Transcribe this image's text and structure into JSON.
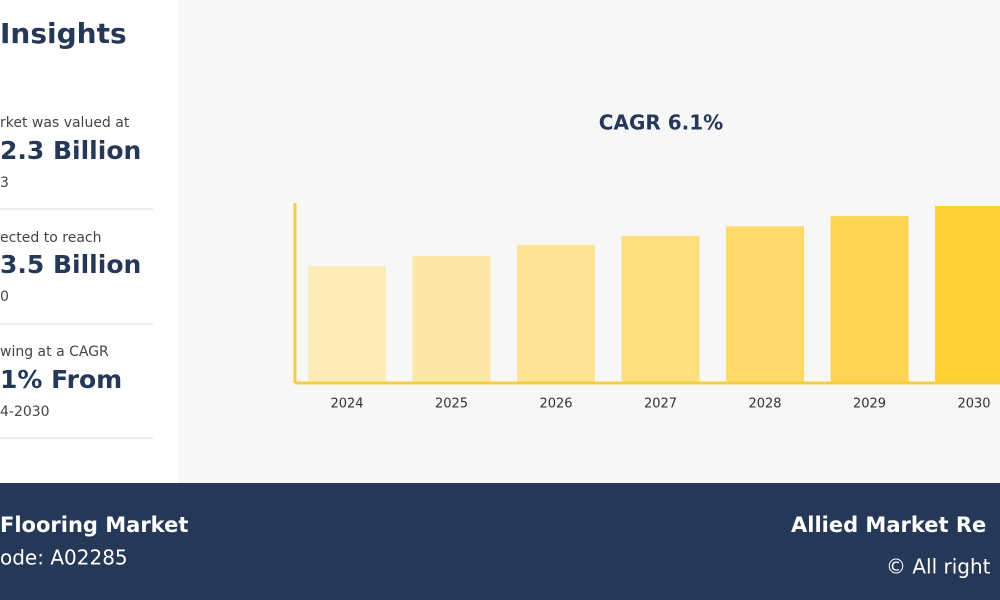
{
  "insights": {
    "title": "Insights",
    "items": [
      {
        "line1": "rket was valued at",
        "value": "2.3 Billion",
        "line3": "3"
      },
      {
        "line1": "ected to reach",
        "value": "3.5 Billion",
        "line3": "0"
      },
      {
        "line1": "wing at a CAGR",
        "value": "1% From",
        "line3": "4-2030"
      }
    ]
  },
  "chart_data": {
    "type": "bar",
    "title": "CAGR 6.1%",
    "categories": [
      "2024",
      "2025",
      "2026",
      "2027",
      "2028",
      "2029",
      "2030"
    ],
    "values": [
      2.31,
      2.51,
      2.73,
      2.91,
      3.1,
      3.3,
      3.5
    ],
    "colors": [
      "#fdecb8",
      "#fde7a6",
      "#fde394",
      "#fddf80",
      "#fdda6a",
      "#fdd552",
      "#fdd136"
    ],
    "axis_color": "#f5cf3a"
  },
  "footer": {
    "left_title": "Flooring Market",
    "left_code": "ode: A02285",
    "right_title": "Allied Market Re",
    "right_copy": "© All right"
  }
}
